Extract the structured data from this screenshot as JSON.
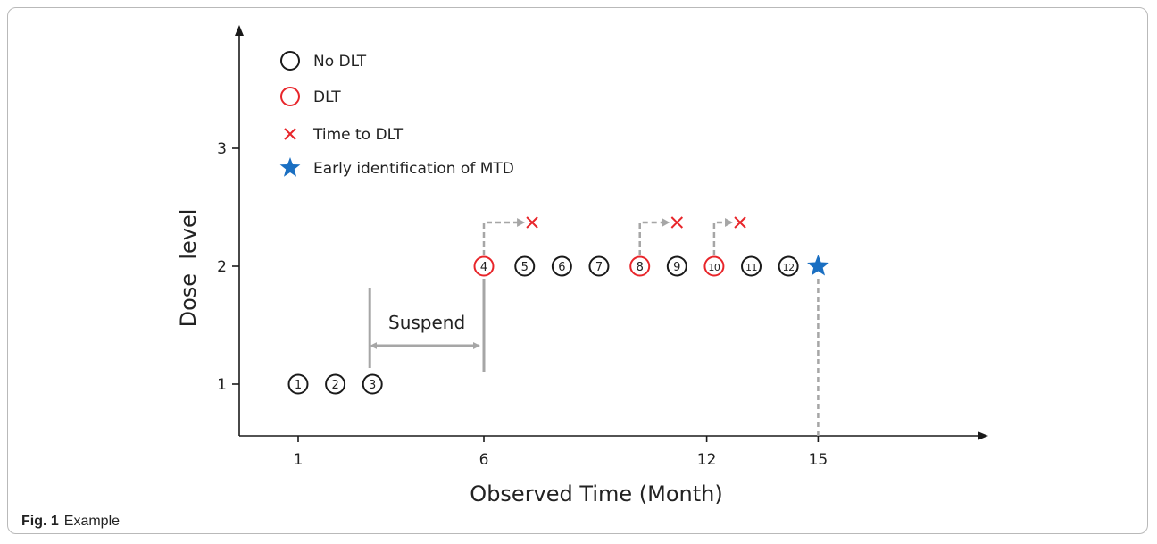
{
  "caption": {
    "label": "Fig. 1",
    "text": "Example"
  },
  "colors": {
    "black": "#1a1a1a",
    "red": "#e8252a",
    "blue": "#1a6fc2",
    "gray": "#a6a6a6"
  },
  "chart_data": {
    "type": "scatter",
    "title": "",
    "xlabel": "Observed Time (Month)",
    "ylabel": "Dose  level",
    "x_ticks": [
      1,
      6,
      12,
      15
    ],
    "y_ticks": [
      1,
      2,
      3
    ],
    "xlim": [
      0,
      19
    ],
    "ylim": [
      0.5,
      3.9
    ],
    "legend": {
      "placement": "top-left",
      "items": [
        {
          "symbol": "circle-black",
          "label": "No DLT"
        },
        {
          "symbol": "circle-red",
          "label": "DLT"
        },
        {
          "symbol": "cross-red",
          "label": "Time to DLT"
        },
        {
          "symbol": "star-blue",
          "label": "Early identification of MTD"
        }
      ]
    },
    "patients": [
      {
        "label": "1",
        "x": 1.0,
        "dose": 1,
        "dlt": false
      },
      {
        "label": "2",
        "x": 2.0,
        "dose": 1,
        "dlt": false
      },
      {
        "label": "3",
        "x": 3.0,
        "dose": 1,
        "dlt": false
      },
      {
        "label": "4",
        "x": 6.0,
        "dose": 2,
        "dlt": true
      },
      {
        "label": "5",
        "x": 7.1,
        "dose": 2,
        "dlt": false
      },
      {
        "label": "6",
        "x": 8.1,
        "dose": 2,
        "dlt": false
      },
      {
        "label": "7",
        "x": 9.1,
        "dose": 2,
        "dlt": false
      },
      {
        "label": "8",
        "x": 10.2,
        "dose": 2,
        "dlt": true
      },
      {
        "label": "9",
        "x": 11.2,
        "dose": 2,
        "dlt": false
      },
      {
        "label": "10",
        "x": 12.2,
        "dose": 2,
        "dlt": true
      },
      {
        "label": "11",
        "x": 13.2,
        "dose": 2,
        "dlt": false
      },
      {
        "label": "12",
        "x": 14.2,
        "dose": 2,
        "dlt": false
      }
    ],
    "dlt_events": [
      {
        "patient": "4",
        "start": 6.0,
        "end": 7.3
      },
      {
        "patient": "8",
        "start": 10.2,
        "end": 11.2
      },
      {
        "patient": "10",
        "start": 12.2,
        "end": 12.9
      }
    ],
    "suspend": {
      "label": "Suspend",
      "start": 3.0,
      "end": 6.0
    },
    "mtd": {
      "x": 15.0,
      "dose": 2
    }
  }
}
